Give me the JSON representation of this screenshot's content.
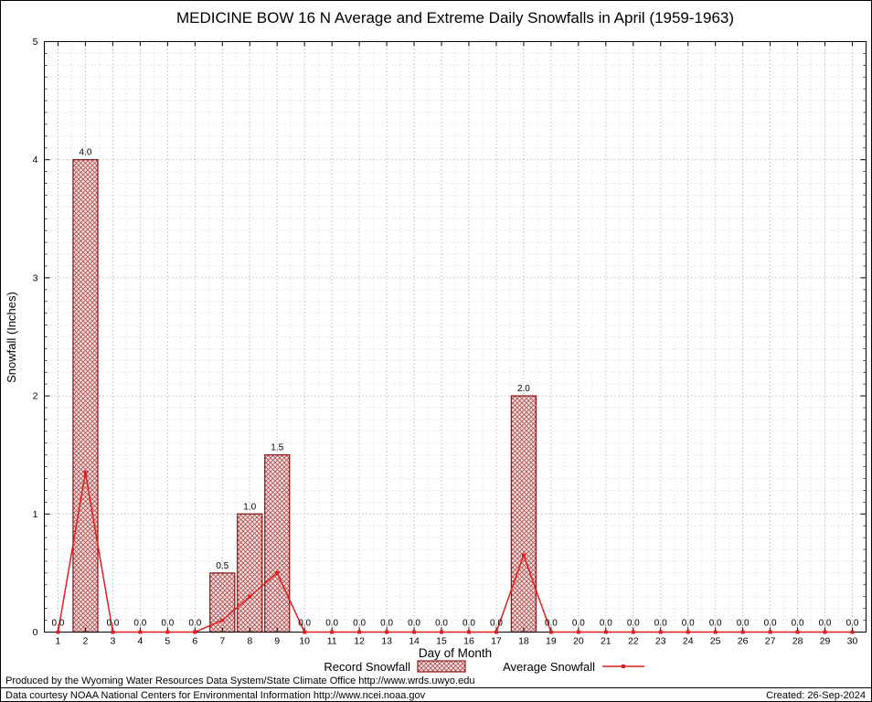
{
  "footer": {
    "produced": "Produced by the Wyoming Water Resources Data System/State Climate Office http://www.wrds.uwyo.edu",
    "courtesy": "Data courtesy NOAA National Centers for Environmental Information http://www.ncei.noaa.gov",
    "created": "Created: 26-Sep-2024"
  },
  "colors": {
    "line": "#e01f1f",
    "bar_border": "#8b1a1a",
    "bar_hatch": "#b04848",
    "bar_bg": "#f6e6e6",
    "grid_major": "#9a9a9a",
    "grid_minor": "#d2d2d2",
    "axis": "#000000"
  },
  "chart_data": {
    "type": "bar",
    "title": "MEDICINE BOW 16 N Average and Extreme Daily Snowfalls in April (1959-1963)",
    "xlabel": "Day of Month",
    "ylabel": "Snowfall (Inches)",
    "x": [
      1,
      2,
      3,
      4,
      5,
      6,
      7,
      8,
      9,
      10,
      11,
      12,
      13,
      14,
      15,
      16,
      17,
      18,
      19,
      20,
      21,
      22,
      23,
      24,
      25,
      26,
      27,
      28,
      29,
      30
    ],
    "series": [
      {
        "name": "Record Snowfall",
        "type": "bar",
        "values": [
          0,
          4.0,
          0,
          0,
          0,
          0,
          0.5,
          1.0,
          1.5,
          0,
          0,
          0,
          0,
          0,
          0,
          0,
          0,
          2.0,
          0,
          0,
          0,
          0,
          0,
          0,
          0,
          0,
          0,
          0,
          0,
          0
        ]
      },
      {
        "name": "Average Snowfall",
        "type": "line",
        "values": [
          0,
          1.35,
          0,
          0,
          0,
          0,
          0.1,
          0.3,
          0.5,
          0,
          0,
          0,
          0,
          0,
          0,
          0,
          0,
          0.65,
          0,
          0,
          0,
          0,
          0,
          0,
          0,
          0,
          0,
          0,
          0,
          0
        ]
      }
    ],
    "bar_labels": [
      "0.0",
      "4.0",
      "0.0",
      "0.0",
      "0.0",
      "0.0",
      "0.5",
      "1.0",
      "1.5",
      "0.0",
      "0.0",
      "0.0",
      "0.0",
      "0.0",
      "0.0",
      "0.0",
      "0.0",
      "2.0",
      "0.0",
      "0.0",
      "0.0",
      "0.0",
      "0.0",
      "0.0",
      "0.0",
      "0.0",
      "0.0",
      "0.0",
      "0.0",
      "0.0"
    ],
    "ylim": [
      0,
      5
    ],
    "yticks": [
      0,
      1,
      2,
      3,
      4,
      5
    ],
    "grid": true,
    "legend_position": "bottom"
  }
}
